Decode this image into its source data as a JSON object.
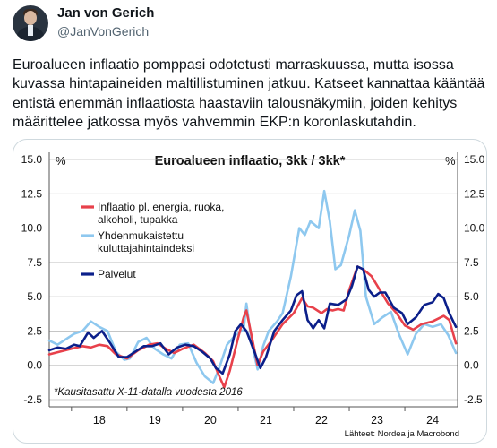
{
  "author": {
    "name": "Jan von Gerich",
    "handle": "@JanVonGerich"
  },
  "tweet_text": "Euroalueen inflaatio pomppasi odotetusti marraskuussa, mutta isossa kuvassa hintapaineiden maltillistuminen jatkuu. Katseet kannattaa kääntää entistä enemmän inflaatiosta haastaviin talousnäkymiin, joiden kehitys määrittelee jatkossa myös vahvemmin EKP:n koronlaskutahdin.",
  "chart_data": {
    "type": "line",
    "title": "Euroalueen inflaatio, 3kk / 3kk*",
    "unit_left": "%",
    "unit_right": "%",
    "note": "*Kausitasattu X-11-datalla vuodesta 2016",
    "source": "Lähteet: Nordea ja Macrobond",
    "ylim": [
      -2.5,
      15.0
    ],
    "y_ticks": [
      "15.0",
      "12.5",
      "10.0",
      "7.5",
      "5.0",
      "2.5",
      "0.0",
      "-2.5"
    ],
    "y_tick_values": [
      15,
      12.5,
      10,
      7.5,
      5,
      2.5,
      0,
      -2.5
    ],
    "x_ticks": [
      "18",
      "19",
      "20",
      "21",
      "22",
      "23",
      "24"
    ],
    "x_tick_values": [
      2018.5,
      2019.5,
      2020.5,
      2021.5,
      2022.5,
      2023.5,
      2024.5
    ],
    "xlim": [
      2017.6,
      2024.95
    ],
    "legend_placement": "top-left",
    "series": [
      {
        "name": "Inflaatio pl. energia, ruoka, alkoholi, tupakka",
        "color": "#e8414b",
        "points": [
          [
            2017.6,
            0.8
          ],
          [
            2017.8,
            1.0
          ],
          [
            2018.0,
            1.2
          ],
          [
            2018.2,
            1.4
          ],
          [
            2018.35,
            1.3
          ],
          [
            2018.5,
            1.5
          ],
          [
            2018.65,
            1.4
          ],
          [
            2018.8,
            0.8
          ],
          [
            2019.0,
            0.5
          ],
          [
            2019.2,
            1.1
          ],
          [
            2019.4,
            1.5
          ],
          [
            2019.55,
            1.6
          ],
          [
            2019.7,
            1.2
          ],
          [
            2019.85,
            0.9
          ],
          [
            2020.0,
            1.2
          ],
          [
            2020.2,
            1.5
          ],
          [
            2020.4,
            0.9
          ],
          [
            2020.55,
            0.3
          ],
          [
            2020.65,
            -0.7
          ],
          [
            2020.75,
            -1.6
          ],
          [
            2020.85,
            -0.4
          ],
          [
            2021.0,
            2.0
          ],
          [
            2021.1,
            3.5
          ],
          [
            2021.15,
            4.0
          ],
          [
            2021.25,
            2.0
          ],
          [
            2021.35,
            0.0
          ],
          [
            2021.45,
            1.0
          ],
          [
            2021.6,
            1.8
          ],
          [
            2021.8,
            3.0
          ],
          [
            2022.0,
            3.8
          ],
          [
            2022.15,
            4.9
          ],
          [
            2022.25,
            4.3
          ],
          [
            2022.35,
            4.2
          ],
          [
            2022.5,
            3.8
          ],
          [
            2022.6,
            4.1
          ],
          [
            2022.7,
            4.0
          ],
          [
            2022.8,
            4.1
          ],
          [
            2022.9,
            4.0
          ],
          [
            2023.0,
            5.5
          ],
          [
            2023.15,
            7.2
          ],
          [
            2023.25,
            7.0
          ],
          [
            2023.4,
            6.5
          ],
          [
            2023.55,
            5.5
          ],
          [
            2023.7,
            4.5
          ],
          [
            2023.85,
            3.8
          ],
          [
            2024.0,
            2.9
          ],
          [
            2024.15,
            2.6
          ],
          [
            2024.3,
            3.0
          ],
          [
            2024.5,
            3.2
          ],
          [
            2024.7,
            3.6
          ],
          [
            2024.8,
            3.3
          ],
          [
            2024.92,
            1.6
          ]
        ]
      },
      {
        "name": "Yhdenmukaistettu kuluttajahintaindeksi",
        "color": "#8ec8ef",
        "points": [
          [
            2017.6,
            1.8
          ],
          [
            2017.75,
            1.5
          ],
          [
            2017.9,
            1.9
          ],
          [
            2018.05,
            2.3
          ],
          [
            2018.2,
            2.5
          ],
          [
            2018.35,
            3.2
          ],
          [
            2018.5,
            2.8
          ],
          [
            2018.65,
            2.5
          ],
          [
            2018.8,
            1.0
          ],
          [
            2018.95,
            0.4
          ],
          [
            2019.05,
            0.5
          ],
          [
            2019.2,
            1.7
          ],
          [
            2019.35,
            2.0
          ],
          [
            2019.5,
            1.2
          ],
          [
            2019.65,
            0.8
          ],
          [
            2019.8,
            0.5
          ],
          [
            2019.95,
            1.5
          ],
          [
            2020.1,
            1.6
          ],
          [
            2020.25,
            0.2
          ],
          [
            2020.4,
            -0.8
          ],
          [
            2020.55,
            -1.3
          ],
          [
            2020.65,
            -0.3
          ],
          [
            2020.8,
            1.5
          ],
          [
            2020.95,
            2.2
          ],
          [
            2021.1,
            2.6
          ],
          [
            2021.15,
            4.5
          ],
          [
            2021.25,
            1.5
          ],
          [
            2021.35,
            -0.3
          ],
          [
            2021.45,
            1.4
          ],
          [
            2021.55,
            2.5
          ],
          [
            2021.7,
            3.2
          ],
          [
            2021.8,
            3.8
          ],
          [
            2021.95,
            6.5
          ],
          [
            2022.1,
            10.0
          ],
          [
            2022.2,
            9.5
          ],
          [
            2022.3,
            10.5
          ],
          [
            2022.45,
            10.0
          ],
          [
            2022.55,
            12.7
          ],
          [
            2022.65,
            10.5
          ],
          [
            2022.75,
            7.0
          ],
          [
            2022.85,
            7.3
          ],
          [
            2023.0,
            9.5
          ],
          [
            2023.1,
            11.3
          ],
          [
            2023.2,
            9.8
          ],
          [
            2023.3,
            5.0
          ],
          [
            2023.45,
            3.0
          ],
          [
            2023.6,
            3.5
          ],
          [
            2023.75,
            3.9
          ],
          [
            2023.9,
            2.2
          ],
          [
            2024.05,
            0.8
          ],
          [
            2024.2,
            2.3
          ],
          [
            2024.35,
            3.0
          ],
          [
            2024.5,
            2.8
          ],
          [
            2024.65,
            3.0
          ],
          [
            2024.78,
            2.2
          ],
          [
            2024.92,
            0.9
          ]
        ]
      },
      {
        "name": "Palvelut",
        "color": "#0b1f8a",
        "points": [
          [
            2017.6,
            1.1
          ],
          [
            2017.75,
            1.3
          ],
          [
            2017.9,
            1.2
          ],
          [
            2018.05,
            1.5
          ],
          [
            2018.15,
            1.4
          ],
          [
            2018.3,
            2.4
          ],
          [
            2018.4,
            2.0
          ],
          [
            2018.55,
            2.5
          ],
          [
            2018.7,
            1.6
          ],
          [
            2018.85,
            0.6
          ],
          [
            2019.0,
            0.6
          ],
          [
            2019.15,
            1.0
          ],
          [
            2019.3,
            1.4
          ],
          [
            2019.45,
            1.4
          ],
          [
            2019.6,
            1.6
          ],
          [
            2019.75,
            0.8
          ],
          [
            2019.9,
            1.3
          ],
          [
            2020.05,
            1.5
          ],
          [
            2020.2,
            1.4
          ],
          [
            2020.35,
            1.0
          ],
          [
            2020.5,
            0.5
          ],
          [
            2020.6,
            -0.2
          ],
          [
            2020.72,
            -0.6
          ],
          [
            2020.85,
            0.8
          ],
          [
            2020.95,
            2.5
          ],
          [
            2021.05,
            3.0
          ],
          [
            2021.15,
            2.5
          ],
          [
            2021.3,
            0.9
          ],
          [
            2021.4,
            -0.2
          ],
          [
            2021.5,
            0.6
          ],
          [
            2021.65,
            2.5
          ],
          [
            2021.8,
            3.3
          ],
          [
            2021.95,
            4.0
          ],
          [
            2022.05,
            5.1
          ],
          [
            2022.15,
            5.4
          ],
          [
            2022.25,
            3.3
          ],
          [
            2022.35,
            2.7
          ],
          [
            2022.45,
            3.3
          ],
          [
            2022.55,
            2.7
          ],
          [
            2022.65,
            4.5
          ],
          [
            2022.8,
            4.4
          ],
          [
            2022.95,
            4.8
          ],
          [
            2023.05,
            5.8
          ],
          [
            2023.15,
            7.2
          ],
          [
            2023.25,
            7.0
          ],
          [
            2023.35,
            5.5
          ],
          [
            2023.45,
            5.0
          ],
          [
            2023.55,
            5.3
          ],
          [
            2023.65,
            5.3
          ],
          [
            2023.8,
            4.2
          ],
          [
            2023.95,
            3.8
          ],
          [
            2024.05,
            3.0
          ],
          [
            2024.2,
            3.5
          ],
          [
            2024.35,
            4.4
          ],
          [
            2024.5,
            4.6
          ],
          [
            2024.6,
            5.2
          ],
          [
            2024.7,
            4.9
          ],
          [
            2024.8,
            3.8
          ],
          [
            2024.92,
            2.8
          ]
        ]
      }
    ]
  }
}
